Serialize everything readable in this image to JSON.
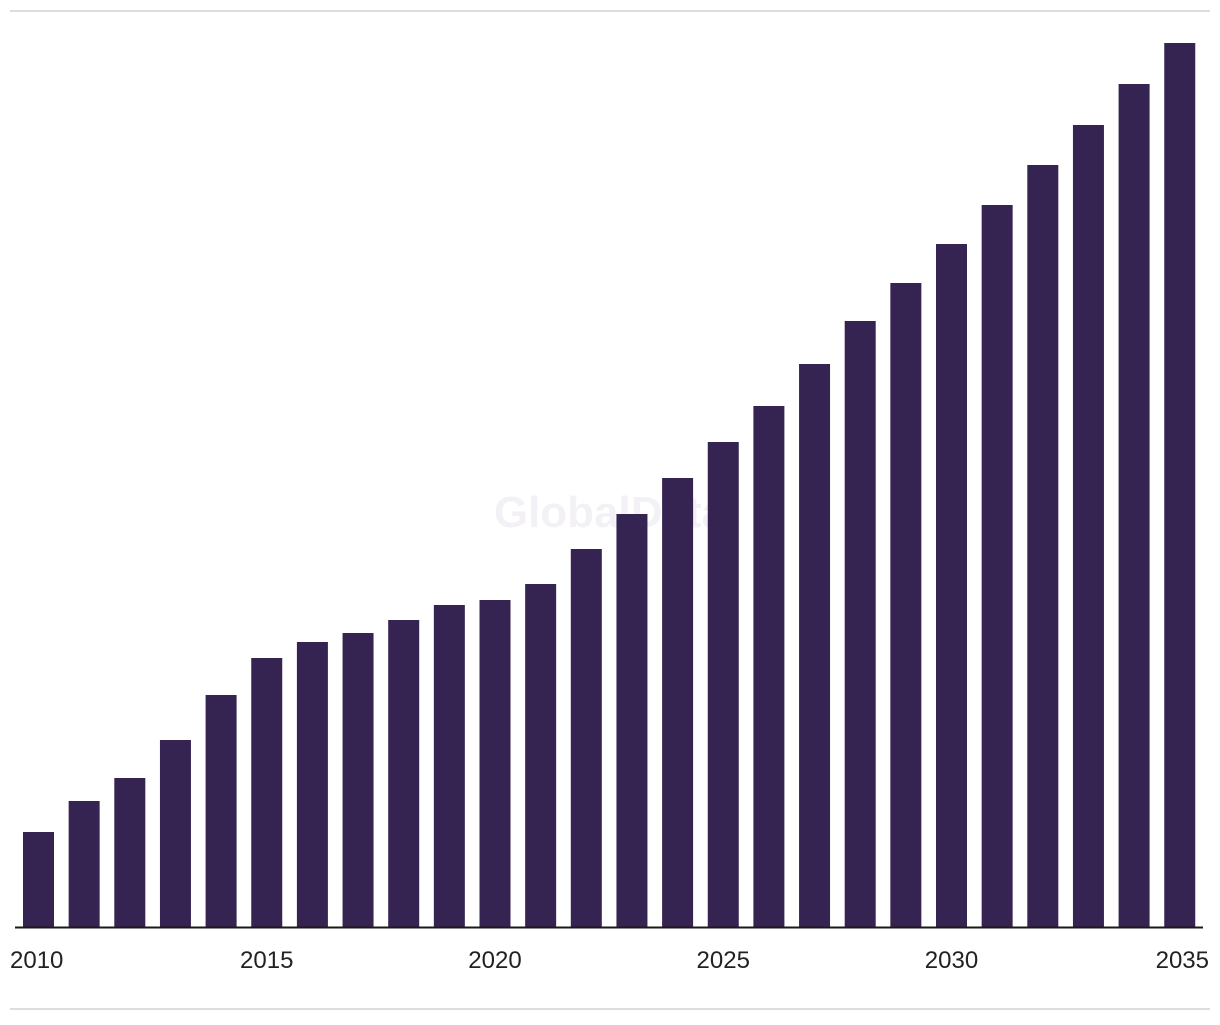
{
  "watermark": "GlobalData",
  "colors": {
    "bar": "#352352",
    "axis": "#1a1a1a",
    "frame_line": "#dddddd",
    "tick_label": "#222222",
    "watermark": "#f3f1f5"
  },
  "chart_data": {
    "type": "bar",
    "title": "",
    "xlabel": "",
    "ylabel": "",
    "categories": [
      2010,
      2011,
      2012,
      2013,
      2014,
      2015,
      2016,
      2017,
      2018,
      2019,
      2020,
      2021,
      2022,
      2023,
      2024,
      2025,
      2026,
      2027,
      2028,
      2029,
      2030,
      2031,
      2032,
      2033,
      2034,
      2035
    ],
    "values": [
      95,
      126,
      149,
      187,
      232,
      269,
      285,
      294,
      307,
      322,
      327,
      343,
      378,
      413,
      449,
      485,
      521,
      563,
      606,
      644,
      683,
      722,
      762,
      802,
      843,
      884
    ],
    "ylim": [
      0,
      900
    ],
    "x_tick_labels": [
      "2010",
      "2015",
      "2020",
      "2025",
      "2030",
      "2035"
    ],
    "y_axis_visible": false,
    "grid": false,
    "legend": "none"
  }
}
